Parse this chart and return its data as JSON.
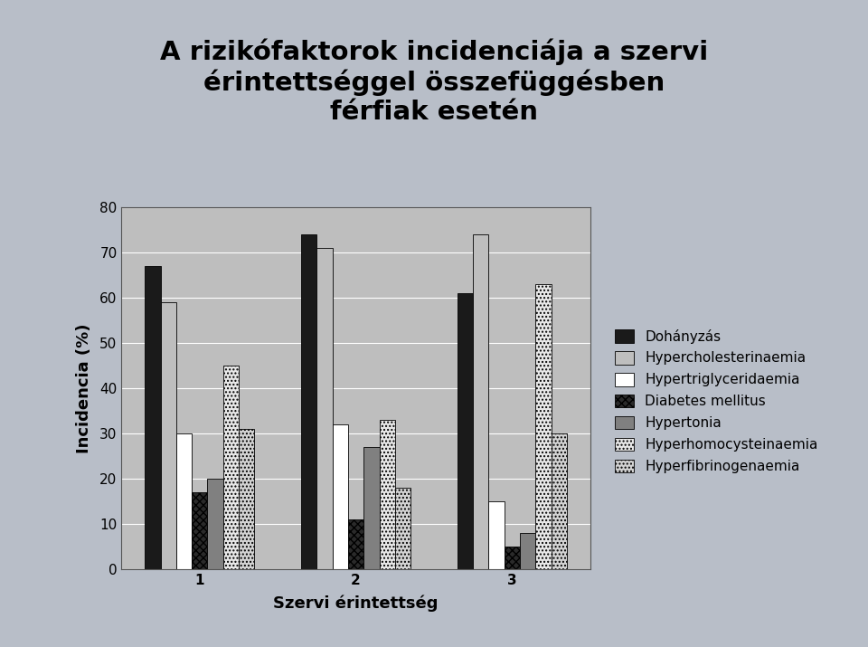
{
  "title": "A rizikófaktorok incidenciája a szervi\nérintettséggel összefüggésben\nférfiak esetén",
  "xlabel": "Szervi érintettség",
  "ylabel": "Incidencia (%)",
  "categories": [
    1,
    2,
    3
  ],
  "series": [
    {
      "label": "Dohányzás",
      "values": [
        67,
        74,
        61
      ],
      "color": "#1a1a1a",
      "hatch": ""
    },
    {
      "label": "Hypercholesterinaemia",
      "values": [
        59,
        71,
        74
      ],
      "color": "#BEBEBE",
      "hatch": ""
    },
    {
      "label": "Hypertriglyceridaemia",
      "values": [
        30,
        32,
        15
      ],
      "color": "#FFFFFF",
      "hatch": ""
    },
    {
      "label": "Diabetes mellitus",
      "values": [
        17,
        11,
        5
      ],
      "color": "#2a2a2a",
      "hatch": "xxxx"
    },
    {
      "label": "Hypertonia",
      "values": [
        20,
        27,
        8
      ],
      "color": "#808080",
      "hatch": ""
    },
    {
      "label": "Hyperhomocysteinaemia",
      "values": [
        45,
        33,
        63
      ],
      "color": "#E8E8E8",
      "hatch": "...."
    },
    {
      "label": "Hyperfibrinogenaemia",
      "values": [
        31,
        18,
        30
      ],
      "color": "#D3D3D3",
      "hatch": "...."
    }
  ],
  "ylim": [
    0,
    80
  ],
  "yticks": [
    0,
    10,
    20,
    30,
    40,
    50,
    60,
    70,
    80
  ],
  "outer_bg_color": "#B8BEC8",
  "title_bg_color": "#C8CDD8",
  "plot_bg_color": "#BEBEBE",
  "title_fontsize": 21,
  "axis_label_fontsize": 13,
  "tick_fontsize": 11,
  "legend_fontsize": 11
}
